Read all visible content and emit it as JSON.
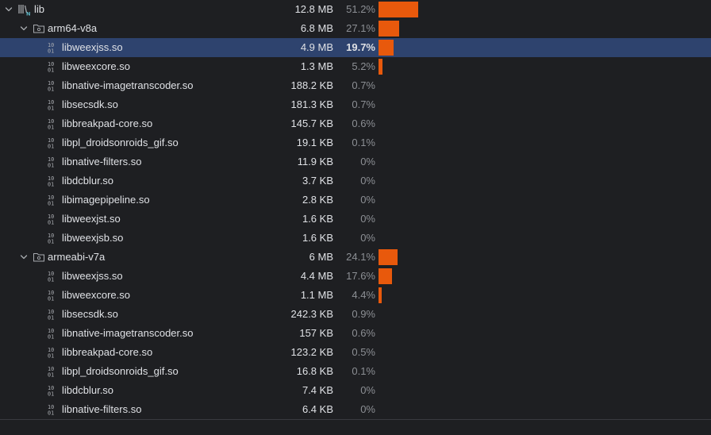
{
  "accent_color": "#e8590c",
  "rows": [
    {
      "name": "lib",
      "size": "12.8 MB",
      "pct": "51.2%",
      "fraction": 0.512,
      "level": 0,
      "type": "lib-root",
      "expanded": true
    },
    {
      "name": "arm64-v8a",
      "size": "6.8 MB",
      "pct": "27.1%",
      "fraction": 0.271,
      "level": 1,
      "type": "folder",
      "expanded": true
    },
    {
      "name": "libweexjss.so",
      "size": "4.9 MB",
      "pct": "19.7%",
      "fraction": 0.197,
      "level": 2,
      "type": "binary",
      "selected": true
    },
    {
      "name": "libweexcore.so",
      "size": "1.3 MB",
      "pct": "5.2%",
      "fraction": 0.052,
      "level": 2,
      "type": "binary"
    },
    {
      "name": "libnative-imagetranscoder.so",
      "size": "188.2 KB",
      "pct": "0.7%",
      "fraction": 0.0,
      "level": 2,
      "type": "binary"
    },
    {
      "name": "libsecsdk.so",
      "size": "181.3 KB",
      "pct": "0.7%",
      "fraction": 0.0,
      "level": 2,
      "type": "binary"
    },
    {
      "name": "libbreakpad-core.so",
      "size": "145.7 KB",
      "pct": "0.6%",
      "fraction": 0.0,
      "level": 2,
      "type": "binary"
    },
    {
      "name": "libpl_droidsonroids_gif.so",
      "size": "19.1 KB",
      "pct": "0.1%",
      "fraction": 0.0,
      "level": 2,
      "type": "binary"
    },
    {
      "name": "libnative-filters.so",
      "size": "11.9 KB",
      "pct": "0%",
      "fraction": 0.0,
      "level": 2,
      "type": "binary"
    },
    {
      "name": "libdcblur.so",
      "size": "3.7 KB",
      "pct": "0%",
      "fraction": 0.0,
      "level": 2,
      "type": "binary"
    },
    {
      "name": "libimagepipeline.so",
      "size": "2.8 KB",
      "pct": "0%",
      "fraction": 0.0,
      "level": 2,
      "type": "binary"
    },
    {
      "name": "libweexjst.so",
      "size": "1.6 KB",
      "pct": "0%",
      "fraction": 0.0,
      "level": 2,
      "type": "binary"
    },
    {
      "name": "libweexjsb.so",
      "size": "1.6 KB",
      "pct": "0%",
      "fraction": 0.0,
      "level": 2,
      "type": "binary"
    },
    {
      "name": "armeabi-v7a",
      "size": "6 MB",
      "pct": "24.1%",
      "fraction": 0.241,
      "level": 1,
      "type": "folder",
      "expanded": true
    },
    {
      "name": "libweexjss.so",
      "size": "4.4 MB",
      "pct": "17.6%",
      "fraction": 0.176,
      "level": 2,
      "type": "binary"
    },
    {
      "name": "libweexcore.so",
      "size": "1.1 MB",
      "pct": "4.4%",
      "fraction": 0.044,
      "level": 2,
      "type": "binary"
    },
    {
      "name": "libsecsdk.so",
      "size": "242.3 KB",
      "pct": "0.9%",
      "fraction": 0.0,
      "level": 2,
      "type": "binary"
    },
    {
      "name": "libnative-imagetranscoder.so",
      "size": "157 KB",
      "pct": "0.6%",
      "fraction": 0.0,
      "level": 2,
      "type": "binary"
    },
    {
      "name": "libbreakpad-core.so",
      "size": "123.2 KB",
      "pct": "0.5%",
      "fraction": 0.0,
      "level": 2,
      "type": "binary"
    },
    {
      "name": "libpl_droidsonroids_gif.so",
      "size": "16.8 KB",
      "pct": "0.1%",
      "fraction": 0.0,
      "level": 2,
      "type": "binary"
    },
    {
      "name": "libdcblur.so",
      "size": "7.4 KB",
      "pct": "0%",
      "fraction": 0.0,
      "level": 2,
      "type": "binary"
    },
    {
      "name": "libnative-filters.so",
      "size": "6.4 KB",
      "pct": "0%",
      "fraction": 0.0,
      "level": 2,
      "type": "binary"
    }
  ]
}
